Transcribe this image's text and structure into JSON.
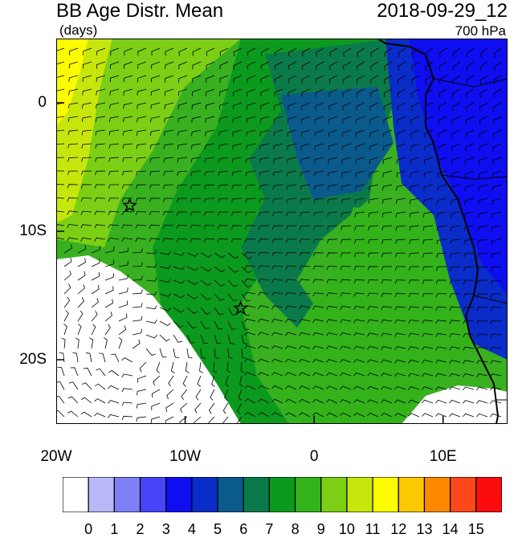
{
  "header": {
    "title": "BB Age Distr. Mean",
    "subtitle": "(days)",
    "datetime": "2018-09-29_12",
    "level": "700 hPa"
  },
  "axes": {
    "y_ticks": [
      {
        "label": "0",
        "lat": 0
      },
      {
        "label": "10S",
        "lat": -10
      },
      {
        "label": "20S",
        "lat": -20
      }
    ],
    "x_ticks": [
      {
        "label": "20W",
        "lon": -20
      },
      {
        "label": "10W",
        "lon": -10
      },
      {
        "label": "0",
        "lon": 0
      },
      {
        "label": "10E",
        "lon": 10
      }
    ],
    "lon_range": [
      -20,
      15
    ],
    "lat_range": [
      -25,
      5
    ]
  },
  "markers": [
    {
      "name": "star-marker-1",
      "lon": -14.3,
      "lat": -8.0
    },
    {
      "name": "star-marker-2",
      "lon": -5.7,
      "lat": -16.0
    }
  ],
  "colorbar": {
    "labels": [
      "0",
      "1",
      "2",
      "3",
      "4",
      "5",
      "6",
      "7",
      "8",
      "9",
      "10",
      "11",
      "12",
      "13",
      "14",
      "15"
    ],
    "colors": [
      "#ffffff",
      "#b8b8f8",
      "#7f7ff5",
      "#4646f8",
      "#0e0ef0",
      "#0a2cc8",
      "#0a5a8c",
      "#0b7a4a",
      "#0c9a1e",
      "#33b21a",
      "#7ccf14",
      "#c6e60c",
      "#fcfc00",
      "#fcc800",
      "#fc8800",
      "#fc4818",
      "#fc0c0c"
    ]
  }
}
